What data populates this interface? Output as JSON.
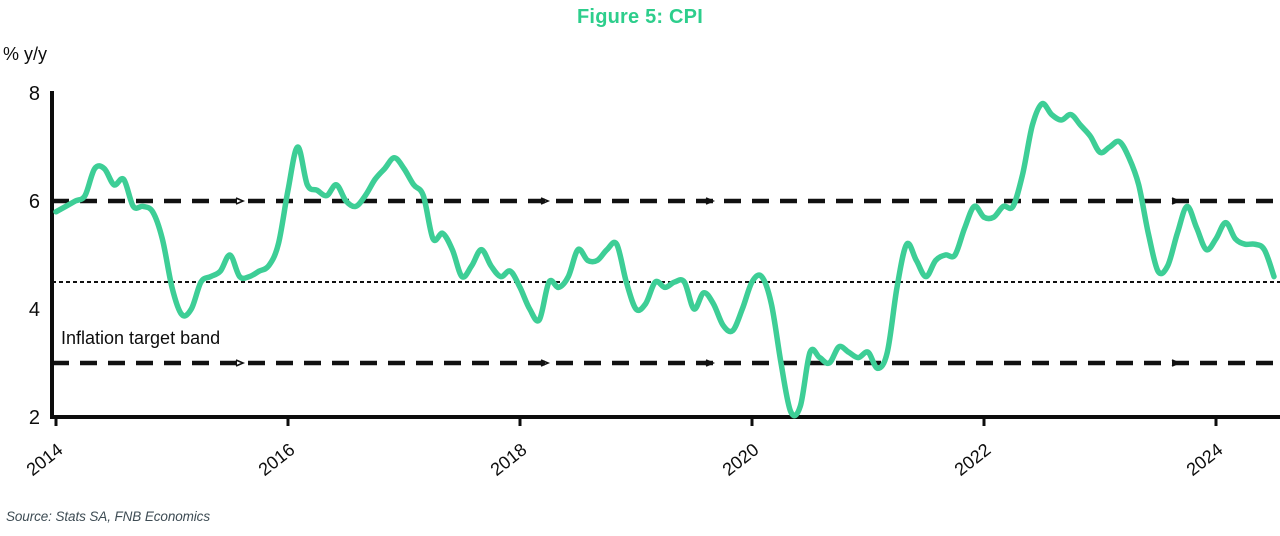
{
  "figure": {
    "title": "Figure 5: CPI",
    "y_axis_label": "% y/y",
    "annotation": "Inflation target band",
    "source": "Source: Stats SA, FNB Economics"
  },
  "chart_data": {
    "type": "line",
    "title": "Figure 5: CPI",
    "xlabel": "",
    "ylabel": "% y/y",
    "ylim": [
      2,
      8
    ],
    "y_ticks": [
      8,
      6,
      4,
      2
    ],
    "x_ticks": [
      2014,
      2016,
      2018,
      2020,
      2022,
      2024
    ],
    "frequency": "monthly",
    "start": "2014-01",
    "end": "2024-07",
    "grid": "off",
    "legend": "none",
    "reference_lines": [
      {
        "value": 6.0,
        "style": "dashed",
        "meaning": "inflation target band upper bound"
      },
      {
        "value": 4.5,
        "style": "dotted",
        "meaning": "inflation target midpoint"
      },
      {
        "value": 3.0,
        "style": "dashed",
        "meaning": "inflation target band lower bound"
      }
    ],
    "series": [
      {
        "name": "CPI % y/y",
        "values": [
          5.8,
          5.9,
          6.0,
          6.1,
          6.6,
          6.6,
          6.3,
          6.4,
          5.9,
          5.9,
          5.8,
          5.3,
          4.4,
          3.9,
          4.0,
          4.5,
          4.6,
          4.7,
          5.0,
          4.6,
          4.6,
          4.7,
          4.8,
          5.2,
          6.2,
          7.0,
          6.3,
          6.2,
          6.1,
          6.3,
          6.0,
          5.9,
          6.1,
          6.4,
          6.6,
          6.8,
          6.6,
          6.3,
          6.1,
          5.3,
          5.4,
          5.1,
          4.6,
          4.8,
          5.1,
          4.8,
          4.6,
          4.7,
          4.4,
          4.0,
          3.8,
          4.5,
          4.4,
          4.6,
          5.1,
          4.9,
          4.9,
          5.1,
          5.2,
          4.5,
          4.0,
          4.1,
          4.5,
          4.4,
          4.5,
          4.5,
          4.0,
          4.3,
          4.1,
          3.7,
          3.6,
          4.0,
          4.5,
          4.6,
          4.1,
          3.0,
          2.1,
          2.2,
          3.2,
          3.1,
          3.0,
          3.3,
          3.2,
          3.1,
          3.2,
          2.9,
          3.2,
          4.4,
          5.2,
          4.9,
          4.6,
          4.9,
          5.0,
          5.0,
          5.5,
          5.9,
          5.7,
          5.7,
          5.9,
          5.9,
          6.5,
          7.4,
          7.8,
          7.6,
          7.5,
          7.6,
          7.4,
          7.2,
          6.9,
          7.0,
          7.1,
          6.8,
          6.3,
          5.4,
          4.7,
          4.8,
          5.4,
          5.9,
          5.5,
          5.1,
          5.3,
          5.6,
          5.3,
          5.2,
          5.2,
          5.1,
          4.6
        ]
      }
    ],
    "colors": {
      "line": "#3DCE96",
      "title": "#2DCE8C",
      "axis": "#0d0d0d",
      "reference": "#111111",
      "source_text": "#3E4C54"
    }
  }
}
